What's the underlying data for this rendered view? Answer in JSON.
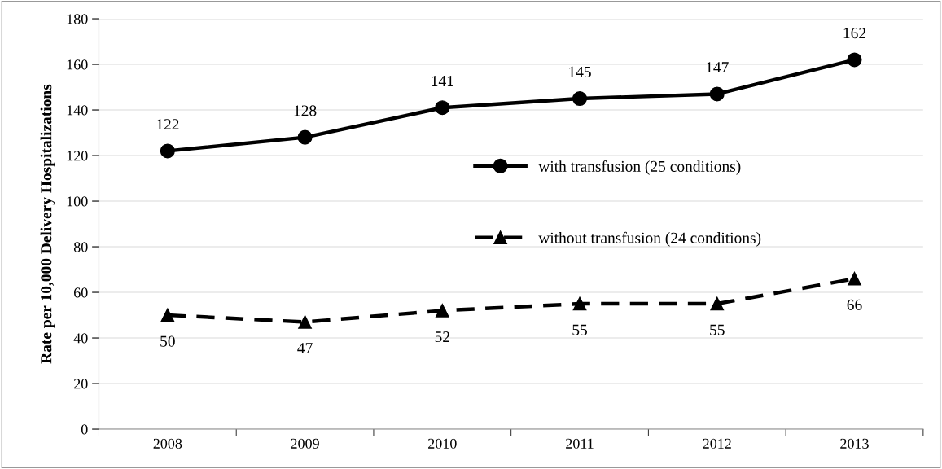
{
  "chart_data": {
    "type": "line",
    "ylabel": "Rate per 10,000 Delivery Hospitalizations",
    "categories": [
      "2008",
      "2009",
      "2010",
      "2011",
      "2012",
      "2013"
    ],
    "series": [
      {
        "name": "with transfusion (25 conditions)",
        "color": "#000000",
        "values": [
          122,
          128,
          141,
          145,
          147,
          162
        ],
        "marker": "circle",
        "line_style": "solid"
      },
      {
        "name": "without transfusion (24 conditions)",
        "color": "#000000",
        "values": [
          50,
          47,
          52,
          55,
          55,
          66
        ],
        "marker": "triangle",
        "line_style": "dashed"
      }
    ],
    "ylim": [
      0,
      180
    ],
    "yticks": [
      0,
      20,
      40,
      60,
      80,
      100,
      120,
      140,
      160,
      180
    ],
    "grid": "y",
    "legend": "center",
    "data_labels": true
  }
}
